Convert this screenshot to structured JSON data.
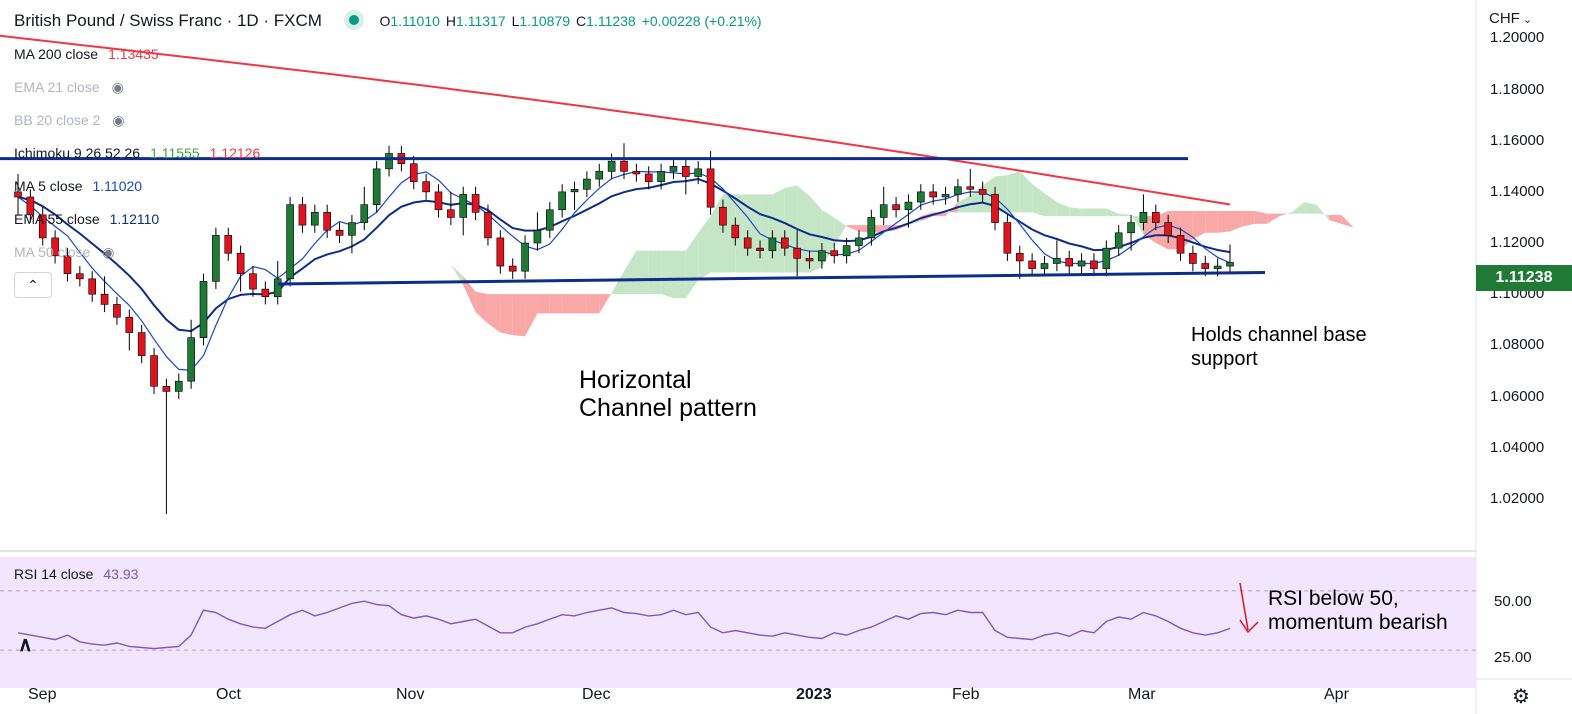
{
  "header": {
    "title": "British Pound / Swiss Franc · 1D · FXCM",
    "ohlc": [
      {
        "k": "O",
        "v": "1.11010"
      },
      {
        "k": "H",
        "v": "1.11317"
      },
      {
        "k": "L",
        "v": "1.10879"
      },
      {
        "k": "C",
        "v": "1.11238"
      },
      {
        "k": "",
        "v": "+0.00228 (+0.21%)"
      }
    ]
  },
  "legends": [
    {
      "id": "ma200",
      "label": "MA 200 close",
      "value": "1.13435",
      "color": "#f23645",
      "hidden": false
    },
    {
      "id": "ema21",
      "label": "EMA 21 close",
      "value": "",
      "color": "#b2b5be",
      "hidden": true
    },
    {
      "id": "bb20",
      "label": "BB 20 close 2",
      "value": "",
      "color": "#b2b5be",
      "hidden": true
    },
    {
      "id": "ichi",
      "label": "Ichimoku 9 26 52 26",
      "value": "1.11555",
      "value2": "1.12126",
      "color": "#43a047",
      "color2": "#f23645",
      "hidden": false
    },
    {
      "id": "ma5",
      "label": "MA 5 close",
      "value": "1.11020",
      "color": "#1848cc",
      "hidden": false
    },
    {
      "id": "ema55",
      "label": "EMA 55 close",
      "value": "1.12110",
      "color": "#0d2d8a",
      "hidden": false
    },
    {
      "id": "ma50",
      "label": "MA 50 close",
      "value": "",
      "color": "#b2b5be",
      "hidden": true
    }
  ],
  "collapse_icon": "chevron-up-icon",
  "currency": "CHF",
  "last_price": "1.11238",
  "annotations": {
    "channel": [
      "Horizontal",
      "Channel pattern"
    ],
    "support": [
      "Holds channel base",
      "support"
    ],
    "rsi": [
      "RSI below 50,",
      "momentum bearish"
    ]
  },
  "rsi_legend": {
    "label": "RSI 14 close",
    "value": "43.93"
  },
  "colors": {
    "up": "#1e7a34",
    "down": "#e0141e",
    "ma200": "#f23645",
    "ema55": "#0d2d8a",
    "ma5": "#1848cc",
    "channel": "#0d2d8a",
    "rsi": "#7e57c2",
    "rsi_bg": "#f3e5fd",
    "cloud_bull": "#c5e6c6",
    "cloud_bear": "#f9a7a7"
  },
  "chart_data": {
    "type": "candlestick",
    "title": "British Pound / Swiss Franc · 1D · FXCM",
    "price_axis": {
      "ticks": [
        "1.20000",
        "1.18000",
        "1.16000",
        "1.14000",
        "1.12000",
        "1.10000",
        "1.08000",
        "1.06000",
        "1.04000",
        "1.02000"
      ],
      "range": [
        1.0,
        1.215
      ]
    },
    "time_axis": [
      "Sep",
      "Oct",
      "Nov",
      "Dec",
      "2023",
      "Feb",
      "Mar",
      "Apr"
    ],
    "bold_ticks": [
      "2023"
    ],
    "close_series": [
      1.138,
      1.131,
      1.122,
      1.115,
      1.108,
      1.106,
      1.1,
      1.096,
      1.091,
      1.085,
      1.076,
      1.064,
      1.062,
      1.066,
      1.083,
      1.105,
      1.123,
      1.116,
      1.108,
      1.102,
      1.099,
      1.106,
      1.135,
      1.127,
      1.132,
      1.125,
      1.123,
      1.128,
      1.135,
      1.149,
      1.155,
      1.151,
      1.144,
      1.14,
      1.133,
      1.13,
      1.139,
      1.132,
      1.122,
      1.111,
      1.109,
      1.12,
      1.125,
      1.133,
      1.14,
      1.141,
      1.145,
      1.148,
      1.152,
      1.148,
      1.147,
      1.144,
      1.148,
      1.15,
      1.146,
      1.149,
      1.134,
      1.127,
      1.122,
      1.118,
      1.117,
      1.122,
      1.118,
      1.114,
      1.113,
      1.117,
      1.115,
      1.119,
      1.122,
      1.13,
      1.135,
      1.133,
      1.136,
      1.14,
      1.138,
      1.139,
      1.142,
      1.141,
      1.139,
      1.128,
      1.116,
      1.113,
      1.11,
      1.112,
      1.114,
      1.111,
      1.113,
      1.11,
      1.118,
      1.124,
      1.128,
      1.132,
      1.128,
      1.123,
      1.116,
      1.112,
      1.11,
      1.111,
      1.1124
    ],
    "ma200": {
      "start": 1.201,
      "end": 1.1345
    },
    "ema55_end": "1.12110",
    "ma5_end": "1.11020",
    "ichimoku": {
      "tenkan": "1.11555",
      "kijun": "1.12126"
    },
    "channel": {
      "top": 1.153,
      "bottom_start": 1.104,
      "bottom_end": 1.1085
    },
    "rsi": {
      "label": "RSI 14 close",
      "value": "43.93",
      "levels": [
        "50.00",
        "25.00"
      ],
      "series": [
        40,
        38,
        36,
        34,
        38,
        32,
        30,
        29,
        31,
        28,
        27,
        26,
        27,
        28,
        38,
        60,
        58,
        52,
        48,
        45,
        44,
        50,
        56,
        60,
        55,
        58,
        62,
        66,
        68,
        65,
        64,
        56,
        53,
        55,
        52,
        48,
        50,
        52,
        46,
        40,
        40,
        45,
        48,
        52,
        56,
        55,
        58,
        60,
        62,
        58,
        57,
        55,
        56,
        60,
        56,
        58,
        45,
        40,
        42,
        40,
        38,
        37,
        40,
        38,
        36,
        35,
        40,
        38,
        42,
        45,
        50,
        55,
        52,
        57,
        58,
        56,
        60,
        58,
        58,
        42,
        36,
        35,
        34,
        38,
        40,
        37,
        42,
        40,
        50,
        54,
        52,
        58,
        55,
        50,
        44,
        40,
        38,
        40,
        43.93
      ]
    }
  }
}
